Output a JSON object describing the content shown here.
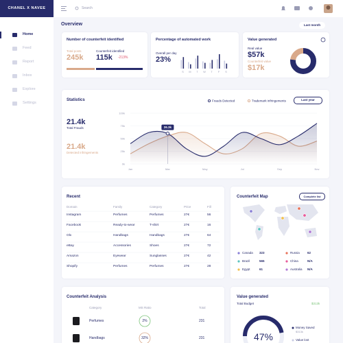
{
  "header": {
    "logo": "CHANEL X NAVEE",
    "search": "Search"
  },
  "sidebar": [
    "Home",
    "Feed",
    "Report",
    "Inbox",
    "Explore",
    "Settings"
  ],
  "overview": {
    "title": "Overview",
    "period": "Last month"
  },
  "counterfeit_card": {
    "title": "Number of counterfeit identified",
    "total_label": "Total posts",
    "total": "245k",
    "identified_label": "Counterfeit identified",
    "identified": "115k",
    "change": "-213%"
  },
  "automation_card": {
    "title": "Percentage of automated work",
    "label": "Overall per day",
    "value": "23%",
    "chart": {
      "type": "bar",
      "categories": [
        "S",
        "M",
        "T",
        "W",
        "T",
        "F",
        "S"
      ],
      "ylim": [
        0,
        100
      ],
      "series": [
        {
          "color": "#c8cbe3",
          "values": [
            60,
            45,
            70,
            50,
            40,
            65,
            55
          ]
        },
        {
          "color": "#272b6b",
          "values": [
            80,
            30,
            90,
            40,
            60,
            100,
            35
          ]
        }
      ]
    }
  },
  "value_card": {
    "title": "Value generated",
    "real_label": "Real value",
    "counterfeit_label": "Counterfeit value",
    "chart": {
      "type": "pie",
      "values": [
        57,
        17
      ],
      "value_labels": [
        "$57k",
        "$17k"
      ],
      "colors": [
        "#272b6b",
        "#d9a98a"
      ]
    }
  },
  "statistics": {
    "title": "Statistics",
    "period": "Last year",
    "total": "21.4k",
    "total_label": "Total Frauds",
    "detected": "21.4k",
    "detected_label": "Detected infringements",
    "chart": {
      "type": "line",
      "categories": [
        "Jan",
        null,
        "Mar",
        null,
        "May",
        null,
        "Jul",
        null,
        "Sep",
        null,
        "Nov"
      ],
      "series": [
        {
          "name": "Frauds Detected",
          "color": "#272b6b",
          "values": [
            40,
            62,
            60,
            30,
            15,
            35,
            62,
            50,
            38,
            55,
            80
          ]
        },
        {
          "name": "Trademark infringements",
          "color": "#d9a98a",
          "values": [
            20,
            40,
            55,
            62,
            40,
            20,
            30,
            60,
            55,
            35,
            45
          ]
        }
      ],
      "ylim": [
        0,
        100
      ],
      "yticks": [
        {
          "value": 0,
          "label": "0k"
        },
        {
          "value": 25,
          "label": "25k"
        },
        {
          "value": 50,
          "label": "50k"
        },
        {
          "value": 75,
          "label": "75k"
        },
        {
          "value": 100,
          "label": "100k"
        }
      ],
      "annotation": "26.3k"
    }
  },
  "recent": {
    "title": "Recent",
    "columns": [
      "Domain",
      "Family",
      "Category",
      "Price",
      "Fill"
    ],
    "rows": [
      [
        "Instagram",
        "Perfumes",
        "Perfumes",
        "27€",
        "56"
      ],
      [
        "Facebook",
        "Ready-to-wear",
        "T-shirt",
        "27€",
        "16"
      ],
      [
        "Olx",
        "Handbags",
        "Handbags",
        "27€",
        "64"
      ],
      [
        "eBay",
        "Accessories",
        "Shoes",
        "27€",
        "72"
      ],
      [
        "Amazon",
        "Eyewear",
        "Sunglasses",
        "27€",
        "42"
      ],
      [
        "Shopify",
        "Perfumes",
        "Perfumes",
        "27€",
        "28"
      ]
    ]
  },
  "map": {
    "title": "Counterfeit Map",
    "button": "Complete list",
    "countries": [
      {
        "name": "Canada",
        "value": "323",
        "color": "#8a80d6"
      },
      {
        "name": "Russia",
        "value": "62",
        "color": "#e8735a"
      },
      {
        "name": "Brazil",
        "value": "565",
        "color": "#5bc4c0"
      },
      {
        "name": "China",
        "value": "N/A",
        "color": "#e85a9a"
      },
      {
        "name": "Egypt",
        "value": "61",
        "color": "#f2c14e"
      },
      {
        "name": "Australia",
        "value": "N/A",
        "color": "#b07ad6"
      }
    ]
  },
  "analysis": {
    "title": "Counterfeit Analysis",
    "columns": [
      "Category",
      "MS Ratio",
      "Total"
    ],
    "rows": [
      [
        "Perfumes",
        "2%",
        "231"
      ],
      [
        "Handbags",
        "32%",
        "231"
      ]
    ]
  },
  "value_generated": {
    "title": "Value generated",
    "budget_label": "Total Budget",
    "budget": "$313k",
    "saved_label": "Money Saved",
    "saved": "$313k",
    "lost_label": "Value lost",
    "chart": {
      "type": "pie",
      "values": [
        47
      ],
      "value_labels": [
        "47%"
      ],
      "color": "#272b6b"
    }
  }
}
